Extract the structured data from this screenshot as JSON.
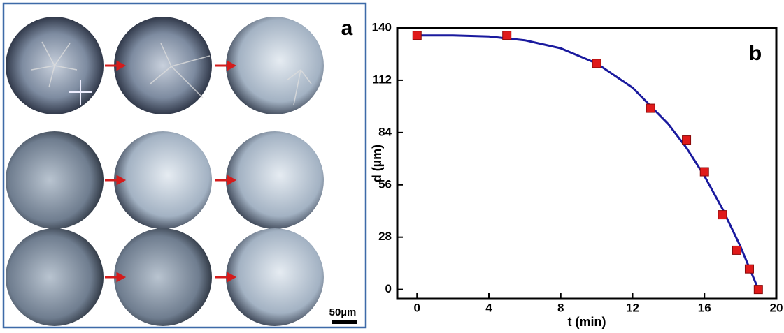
{
  "panel_a": {
    "label": "a",
    "scale_bar": "50µm"
  },
  "chart_data": {
    "type": "scatter",
    "panel_label": "b",
    "xlabel": "t (min)",
    "ylabel": "d (µm)",
    "x": [
      0,
      5,
      10,
      13,
      15,
      16,
      17,
      17.8,
      18.5,
      19
    ],
    "values": [
      136,
      136,
      121,
      97,
      80,
      63,
      40,
      21,
      11,
      0
    ],
    "color": "#e01a1a",
    "fit": {
      "color": "#1a1a9e",
      "x": [
        0,
        2,
        4,
        6,
        8,
        10,
        12,
        14,
        15,
        16,
        17,
        18,
        19
      ],
      "values": [
        136,
        136,
        135.4,
        133.4,
        129.1,
        121,
        108,
        88.4,
        75.8,
        60.7,
        43.2,
        23.1,
        0
      ]
    },
    "xlim": [
      -1.1,
      20
    ],
    "ylim": [
      -5,
      140
    ],
    "xticks": [
      0,
      4,
      8,
      12,
      16,
      20
    ],
    "yticks": [
      0,
      28,
      56,
      84,
      112,
      140
    ]
  }
}
